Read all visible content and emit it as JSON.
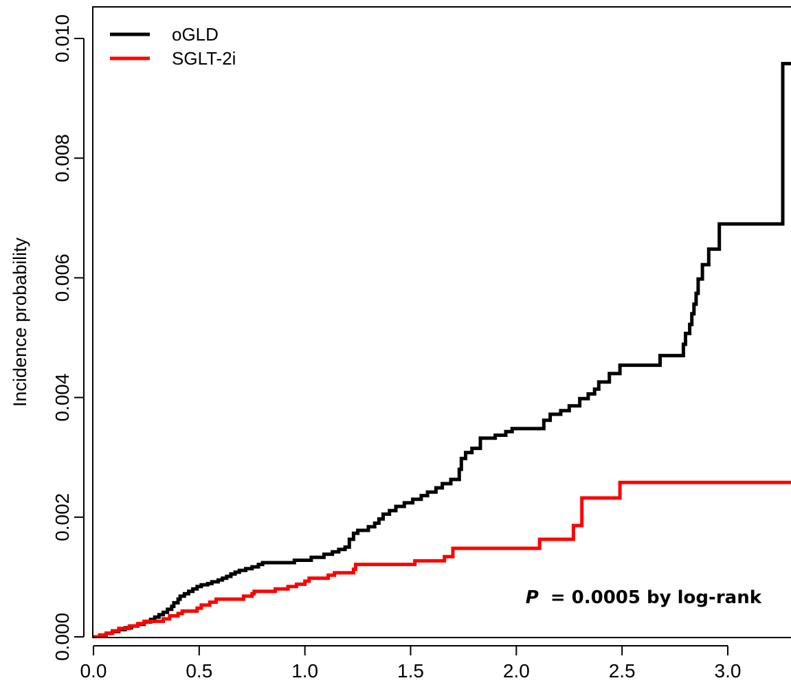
{
  "chart_data": {
    "type": "line",
    "title": "",
    "xlabel": "",
    "ylabel": "Incidence probability",
    "xlim": [
      0.0,
      3.3
    ],
    "ylim": [
      0.0,
      0.0105
    ],
    "x_ticks": [
      "0.0",
      "0.5",
      "1.0",
      "1.5",
      "2.0",
      "2.5",
      "3.0"
    ],
    "y_ticks": [
      "0.000",
      "0.002",
      "0.004",
      "0.006",
      "0.008",
      "0.010"
    ],
    "grid": false,
    "legend": {
      "position": "top-left"
    },
    "annotation": {
      "prefix": "P",
      "text": "= 0.0005 by log-rank"
    },
    "series": [
      {
        "name": "oGLD",
        "color": "#000000",
        "step": true,
        "points": [
          [
            0.0,
            0.0
          ],
          [
            0.03,
            3e-05
          ],
          [
            0.06,
            6e-05
          ],
          [
            0.09,
            9e-05
          ],
          [
            0.12,
            0.00012
          ],
          [
            0.15,
            0.00015
          ],
          [
            0.18,
            0.00018
          ],
          [
            0.21,
            0.00021
          ],
          [
            0.24,
            0.00025
          ],
          [
            0.27,
            0.00029
          ],
          [
            0.29,
            0.00033
          ],
          [
            0.31,
            0.00037
          ],
          [
            0.33,
            0.00041
          ],
          [
            0.35,
            0.00046
          ],
          [
            0.37,
            0.00051
          ],
          [
            0.38,
            0.00057
          ],
          [
            0.4,
            0.00063
          ],
          [
            0.41,
            0.00068
          ],
          [
            0.43,
            0.00072
          ],
          [
            0.45,
            0.00076
          ],
          [
            0.47,
            0.0008
          ],
          [
            0.49,
            0.00084
          ],
          [
            0.51,
            0.00087
          ],
          [
            0.54,
            0.00089
          ],
          [
            0.56,
            0.00092
          ],
          [
            0.59,
            0.00095
          ],
          [
            0.61,
            0.00098
          ],
          [
            0.63,
            0.00101
          ],
          [
            0.65,
            0.00105
          ],
          [
            0.67,
            0.00108
          ],
          [
            0.69,
            0.00111
          ],
          [
            0.72,
            0.00114
          ],
          [
            0.75,
            0.00117
          ],
          [
            0.78,
            0.00121
          ],
          [
            0.8,
            0.00124
          ],
          [
            0.95,
            0.00128
          ],
          [
            1.03,
            0.00133
          ],
          [
            1.09,
            0.00138
          ],
          [
            1.13,
            0.00142
          ],
          [
            1.16,
            0.00146
          ],
          [
            1.19,
            0.0015
          ],
          [
            1.21,
            0.00163
          ],
          [
            1.23,
            0.00173
          ],
          [
            1.25,
            0.00178
          ],
          [
            1.3,
            0.00184
          ],
          [
            1.33,
            0.0019
          ],
          [
            1.35,
            0.00197
          ],
          [
            1.37,
            0.00205
          ],
          [
            1.4,
            0.00211
          ],
          [
            1.43,
            0.00218
          ],
          [
            1.47,
            0.00224
          ],
          [
            1.51,
            0.0023
          ],
          [
            1.55,
            0.00236
          ],
          [
            1.58,
            0.00242
          ],
          [
            1.62,
            0.00249
          ],
          [
            1.65,
            0.00256
          ],
          [
            1.69,
            0.00263
          ],
          [
            1.73,
            0.0028
          ],
          [
            1.74,
            0.00298
          ],
          [
            1.76,
            0.00308
          ],
          [
            1.79,
            0.00315
          ],
          [
            1.83,
            0.00332
          ],
          [
            1.9,
            0.00337
          ],
          [
            1.95,
            0.00343
          ],
          [
            1.98,
            0.00348
          ],
          [
            2.13,
            0.00362
          ],
          [
            2.16,
            0.00372
          ],
          [
            2.21,
            0.00378
          ],
          [
            2.25,
            0.00386
          ],
          [
            2.3,
            0.00398
          ],
          [
            2.34,
            0.00406
          ],
          [
            2.37,
            0.00414
          ],
          [
            2.39,
            0.00426
          ],
          [
            2.44,
            0.0044
          ],
          [
            2.49,
            0.00454
          ],
          [
            2.68,
            0.0047
          ],
          [
            2.79,
            0.00489
          ],
          [
            2.8,
            0.00507
          ],
          [
            2.82,
            0.00522
          ],
          [
            2.83,
            0.0054
          ],
          [
            2.84,
            0.00556
          ],
          [
            2.85,
            0.00574
          ],
          [
            2.86,
            0.00598
          ],
          [
            2.88,
            0.00622
          ],
          [
            2.91,
            0.00648
          ],
          [
            2.96,
            0.0069
          ],
          [
            3.26,
            0.00958
          ]
        ]
      },
      {
        "name": "SGLT-2i",
        "color": "#ff0000",
        "step": true,
        "points": [
          [
            0.0,
            0.0
          ],
          [
            0.03,
            3e-05
          ],
          [
            0.06,
            6e-05
          ],
          [
            0.09,
            0.0001
          ],
          [
            0.12,
            0.00014
          ],
          [
            0.17,
            0.00018
          ],
          [
            0.21,
            0.00022
          ],
          [
            0.24,
            0.00026
          ],
          [
            0.33,
            0.0003
          ],
          [
            0.36,
            0.00035
          ],
          [
            0.4,
            0.00039
          ],
          [
            0.42,
            0.00043
          ],
          [
            0.49,
            0.00048
          ],
          [
            0.51,
            0.00053
          ],
          [
            0.55,
            0.00058
          ],
          [
            0.58,
            0.00063
          ],
          [
            0.71,
            0.00068
          ],
          [
            0.75,
            0.00072
          ],
          [
            0.76,
            0.00076
          ],
          [
            0.86,
            0.0008
          ],
          [
            0.92,
            0.00084
          ],
          [
            0.96,
            0.00088
          ],
          [
            1.0,
            0.00093
          ],
          [
            1.02,
            0.00098
          ],
          [
            1.11,
            0.00103
          ],
          [
            1.14,
            0.00107
          ],
          [
            1.23,
            0.00113
          ],
          [
            1.24,
            0.00121
          ],
          [
            1.52,
            0.00127
          ],
          [
            1.66,
            0.00134
          ],
          [
            1.7,
            0.00148
          ],
          [
            2.11,
            0.00163
          ],
          [
            2.27,
            0.00186
          ],
          [
            2.31,
            0.00232
          ],
          [
            2.49,
            0.00258
          ]
        ]
      }
    ]
  }
}
